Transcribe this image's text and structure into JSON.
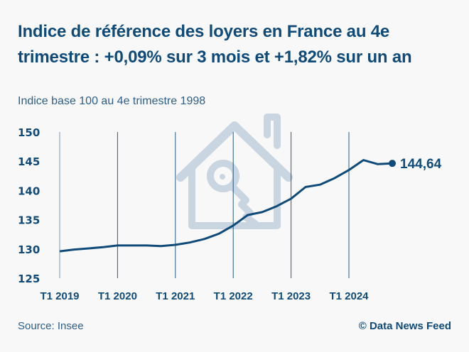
{
  "header": {
    "title": "Indice de référence des loyers en France au 4e trimestre : +0,09% sur 3 mois et +1,82% sur un an",
    "subtitle": "Indice base 100 au 4e trimestre 1998"
  },
  "footer": {
    "source": "Source: Insee",
    "credit": "© Data News Feed"
  },
  "colors": {
    "line": "#0f4a78",
    "gridline": "#0f4a78",
    "watermark": "#c9d5e0",
    "background": "#f8f8f9"
  },
  "watermark_icon": "house-key-icon",
  "chart_data": {
    "type": "line",
    "title": "Indice de référence des loyers en France au 4e trimestre : +0,09% sur 3 mois et +1,82% sur un an",
    "subtitle": "Indice base 100 au 4e trimestre 1998",
    "xlabel": "",
    "ylabel": "",
    "ylim": [
      125,
      150
    ],
    "yticks": [
      "150",
      "145",
      "140",
      "135",
      "130",
      "125"
    ],
    "ytick_values": [
      150,
      145,
      140,
      135,
      130,
      125
    ],
    "xtick_labels": [
      "T1 2019",
      "T1 2020",
      "T1 2021",
      "T1 2022",
      "T1 2023",
      "T1 2024"
    ],
    "grid": "vertical",
    "x": [
      "T1 2019",
      "T2 2019",
      "T3 2019",
      "T4 2019",
      "T1 2020",
      "T2 2020",
      "T3 2020",
      "T4 2020",
      "T1 2021",
      "T2 2021",
      "T3 2021",
      "T4 2021",
      "T1 2022",
      "T2 2022",
      "T3 2022",
      "T4 2022",
      "T1 2023",
      "T2 2023",
      "T3 2023",
      "T4 2023",
      "T1 2024",
      "T2 2024",
      "T3 2024",
      "T4 2024"
    ],
    "series": [
      {
        "name": "IRL",
        "values": [
          129.6,
          129.9,
          130.1,
          130.3,
          130.6,
          130.6,
          130.6,
          130.5,
          130.7,
          131.1,
          131.7,
          132.6,
          134.0,
          135.8,
          136.3,
          137.3,
          138.6,
          140.6,
          141.0,
          142.1,
          143.5,
          145.2,
          144.5,
          144.64
        ]
      }
    ],
    "annotation": {
      "label": "144,64",
      "point": "T4 2024"
    }
  }
}
